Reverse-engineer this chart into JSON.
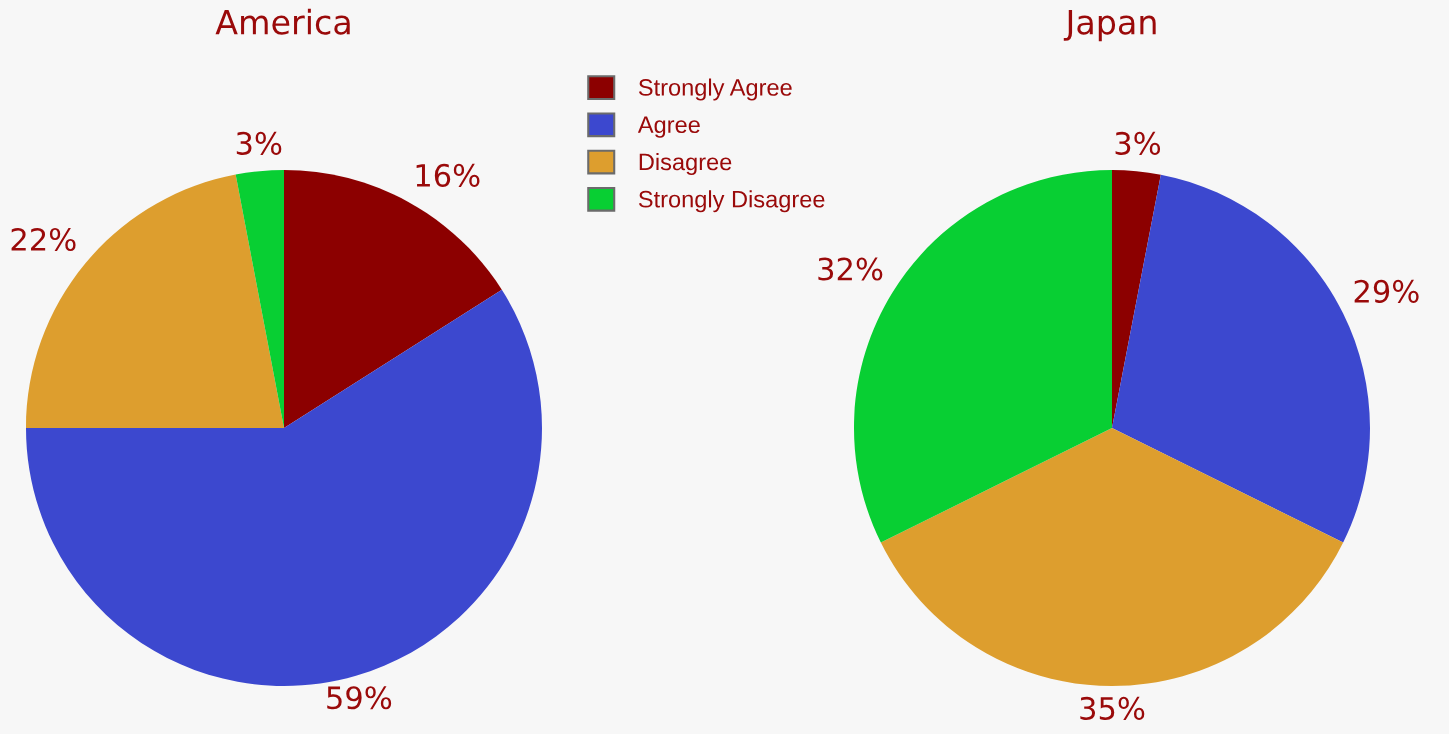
{
  "chart_data": [
    {
      "type": "pie",
      "title": "America",
      "categories": [
        "Strongly Agree",
        "Agree",
        "Disagree",
        "Strongly Disagree"
      ],
      "values": [
        16,
        59,
        22,
        3
      ],
      "colors": [
        "#8c0000",
        "#3c48cf",
        "#dd9e2e",
        "#08cf33"
      ],
      "value_labels": [
        "16%",
        "59%",
        "22%",
        "3%"
      ],
      "legend": "top right"
    },
    {
      "type": "pie",
      "title": "Japan",
      "categories": [
        null,
        null,
        null,
        null
      ],
      "values": [
        3,
        29,
        35,
        32
      ],
      "colors": [
        "#8c0000",
        "#3c48cf",
        "#dd9e2e",
        "#08cf33"
      ],
      "value_labels": [
        "3%",
        "29%",
        "35%",
        "32%"
      ]
    }
  ]
}
